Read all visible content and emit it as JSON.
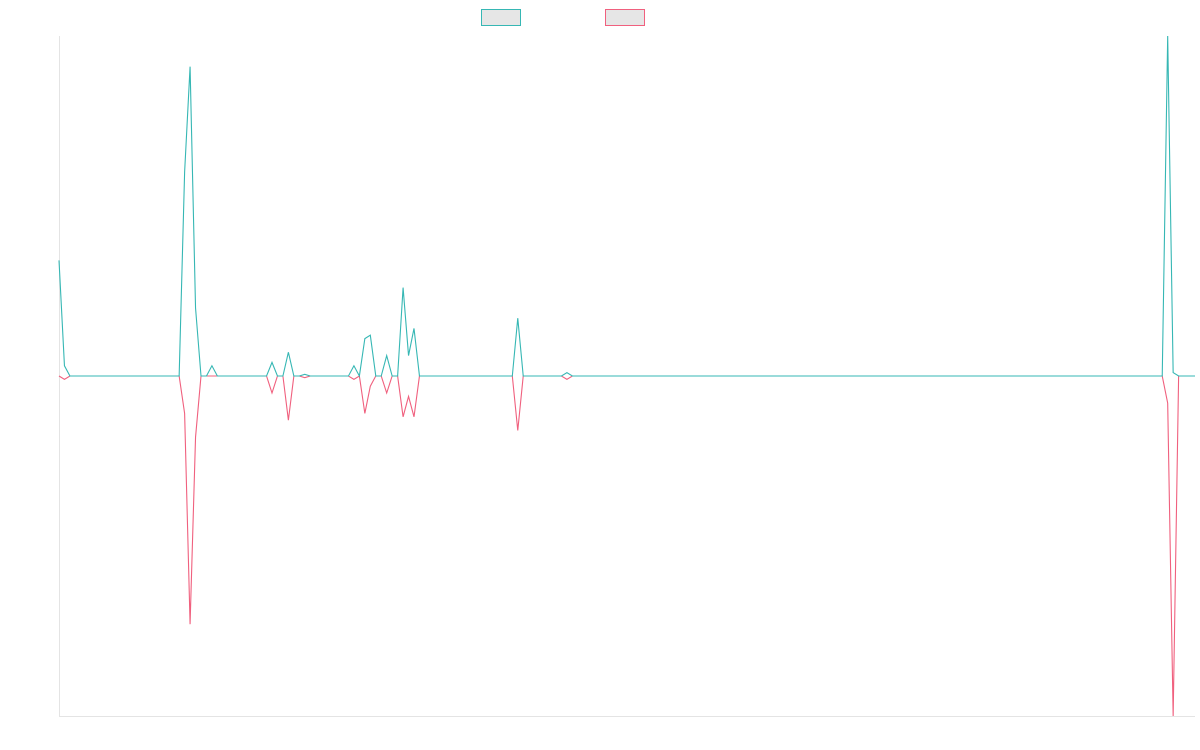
{
  "chart_data": {
    "type": "line",
    "title": "",
    "xlabel": "",
    "ylabel": "",
    "grid": false,
    "legend_position": "top",
    "x_range": [
      0,
      208
    ],
    "ylim": [
      -1.0,
      1.0
    ],
    "series": [
      {
        "key": "teal",
        "color": "#36b7b4",
        "swatch_fill": "#e6e6e6",
        "points": [
          [
            0,
            0.34
          ],
          [
            1,
            0.03
          ],
          [
            2,
            0
          ],
          [
            3,
            0
          ],
          [
            22,
            0
          ],
          [
            23,
            0.6
          ],
          [
            24,
            0.91
          ],
          [
            25,
            0.2
          ],
          [
            26,
            0
          ],
          [
            27,
            0
          ],
          [
            28,
            0.03
          ],
          [
            29,
            0
          ],
          [
            38,
            0
          ],
          [
            39,
            0.04
          ],
          [
            40,
            0
          ],
          [
            41,
            0
          ],
          [
            42,
            0.07
          ],
          [
            43,
            0
          ],
          [
            44,
            0
          ],
          [
            45,
            0.005
          ],
          [
            46,
            0
          ],
          [
            53,
            0
          ],
          [
            54,
            0.03
          ],
          [
            55,
            0
          ],
          [
            56,
            0.11
          ],
          [
            57,
            0.12
          ],
          [
            58,
            0
          ],
          [
            59,
            0
          ],
          [
            60,
            0.06
          ],
          [
            61,
            0
          ],
          [
            62,
            0
          ],
          [
            63,
            0.26
          ],
          [
            64,
            0.06
          ],
          [
            65,
            0.14
          ],
          [
            66,
            0
          ],
          [
            67,
            0
          ],
          [
            68,
            0
          ],
          [
            83,
            0
          ],
          [
            84,
            0.17
          ],
          [
            85,
            0
          ],
          [
            92,
            0
          ],
          [
            93,
            0.01
          ],
          [
            94,
            0
          ],
          [
            202,
            0
          ],
          [
            203,
            1.0
          ],
          [
            204,
            0.01
          ],
          [
            205,
            0
          ],
          [
            208,
            0
          ]
        ]
      },
      {
        "key": "pink",
        "color": "#f0607e",
        "swatch_fill": "#e6e6e6",
        "points": [
          [
            0,
            0
          ],
          [
            1,
            -0.01
          ],
          [
            2,
            0
          ],
          [
            3,
            0
          ],
          [
            22,
            0
          ],
          [
            23,
            -0.11
          ],
          [
            24,
            -0.73
          ],
          [
            25,
            -0.18
          ],
          [
            26,
            0
          ],
          [
            38,
            0
          ],
          [
            39,
            -0.05
          ],
          [
            40,
            0
          ],
          [
            41,
            0
          ],
          [
            42,
            -0.13
          ],
          [
            43,
            0
          ],
          [
            44,
            0
          ],
          [
            45,
            -0.005
          ],
          [
            46,
            0
          ],
          [
            53,
            0
          ],
          [
            54,
            -0.01
          ],
          [
            55,
            0
          ],
          [
            56,
            -0.11
          ],
          [
            57,
            -0.03
          ],
          [
            58,
            0
          ],
          [
            59,
            0
          ],
          [
            60,
            -0.05
          ],
          [
            61,
            0
          ],
          [
            62,
            0
          ],
          [
            63,
            -0.12
          ],
          [
            64,
            -0.06
          ],
          [
            65,
            -0.12
          ],
          [
            66,
            0
          ],
          [
            83,
            0
          ],
          [
            84,
            -0.16
          ],
          [
            85,
            0
          ],
          [
            92,
            0
          ],
          [
            93,
            -0.01
          ],
          [
            94,
            0
          ],
          [
            202,
            0
          ],
          [
            203,
            -0.08
          ],
          [
            204,
            -1.0
          ],
          [
            205,
            0
          ],
          [
            208,
            0
          ]
        ]
      }
    ]
  }
}
